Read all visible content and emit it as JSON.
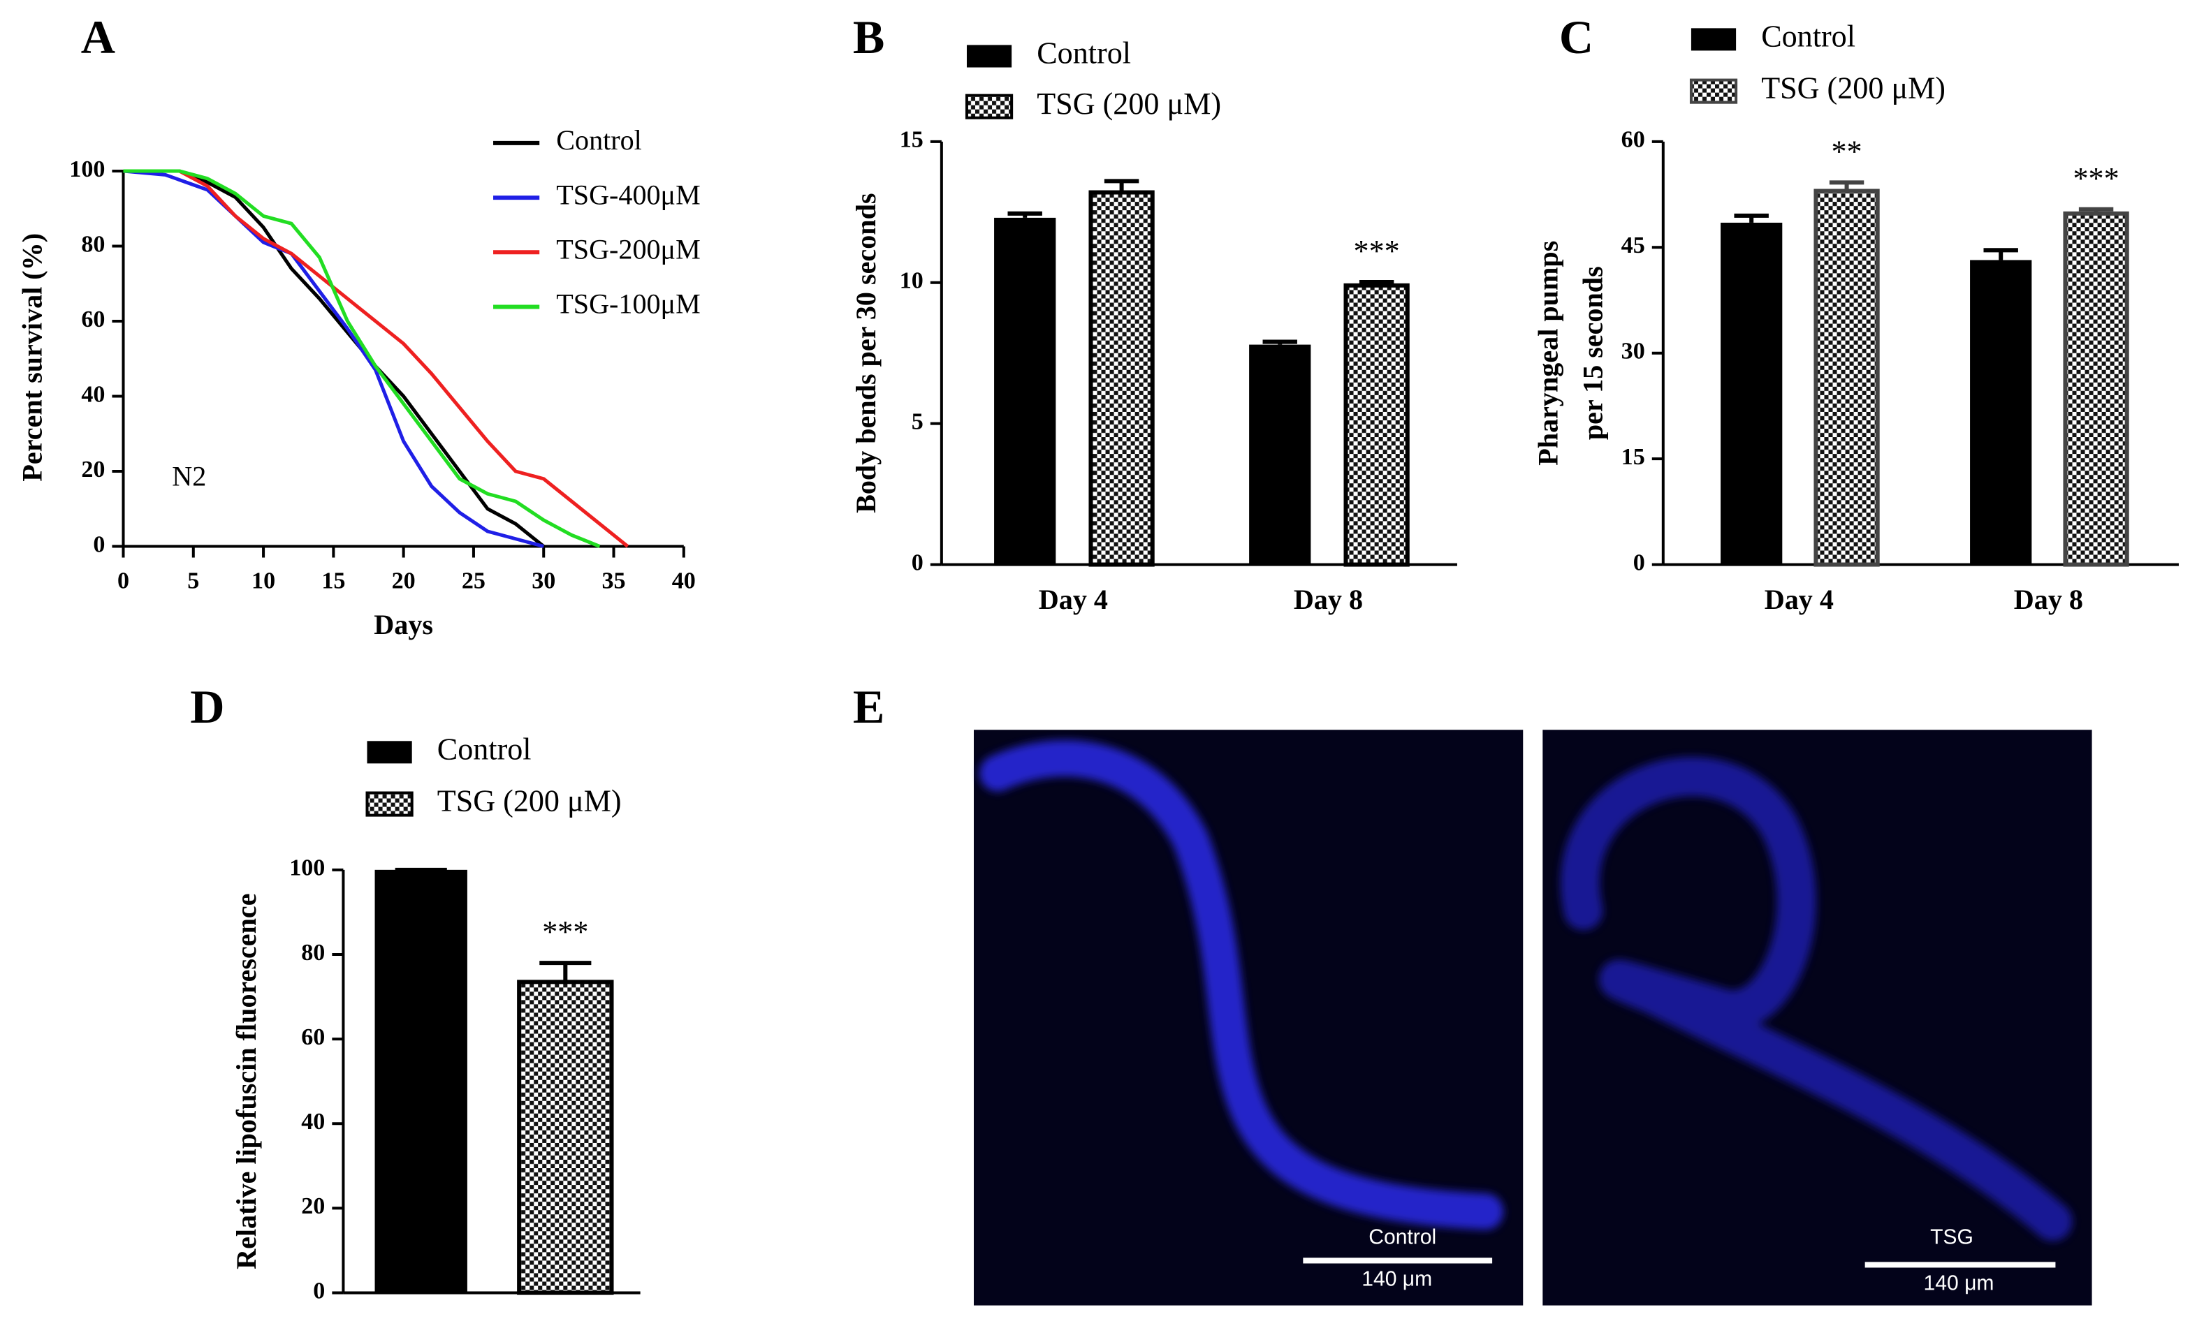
{
  "chart_data": [
    {
      "type": "line",
      "label": "A",
      "xlabel": "Days",
      "ylabel": "Percent survival (%)",
      "annotation": "N2",
      "xlim": [
        0,
        40
      ],
      "xticks": [
        0,
        5,
        10,
        15,
        20,
        25,
        30,
        35,
        40
      ],
      "ylim": [
        0,
        100
      ],
      "yticks": [
        0,
        20,
        40,
        60,
        80,
        100
      ],
      "series": [
        {
          "name": "Control",
          "color": "#000000",
          "x": [
            0,
            4,
            6,
            8,
            10,
            12,
            14,
            16,
            18,
            20,
            22,
            24,
            26,
            28,
            30
          ],
          "values": [
            100,
            100,
            97,
            93,
            85,
            74,
            66,
            57,
            48,
            40,
            30,
            20,
            10,
            6,
            0
          ]
        },
        {
          "name": "TSG-400μM",
          "color": "#1f1fe6",
          "x": [
            0,
            3,
            6,
            8,
            10,
            12,
            14,
            16,
            18,
            20,
            22,
            24,
            26,
            28,
            30
          ],
          "values": [
            100,
            99,
            95,
            88,
            81,
            78,
            68,
            58,
            47,
            28,
            16,
            9,
            4,
            2,
            0
          ]
        },
        {
          "name": "TSG-200μM",
          "color": "#ee2020",
          "x": [
            0,
            4,
            6,
            8,
            10,
            12,
            14,
            16,
            18,
            20,
            22,
            24,
            26,
            28,
            30,
            32,
            34,
            36
          ],
          "values": [
            100,
            100,
            96,
            88,
            82,
            78,
            72,
            66,
            60,
            54,
            46,
            37,
            28,
            20,
            18,
            12,
            6,
            0
          ]
        },
        {
          "name": "TSG-100μM",
          "color": "#22dd22",
          "x": [
            0,
            4,
            6,
            8,
            10,
            12,
            14,
            16,
            18,
            20,
            22,
            24,
            26,
            28,
            30,
            32,
            34
          ],
          "values": [
            100,
            100,
            98,
            94,
            88,
            86,
            77,
            60,
            48,
            38,
            28,
            18,
            14,
            12,
            7,
            3,
            0
          ]
        }
      ]
    },
    {
      "type": "bar",
      "label": "B",
      "ylabel": "Body bends per 30 seconds",
      "categories": [
        "Day 4",
        "Day 8"
      ],
      "ylim": [
        0,
        15
      ],
      "yticks": [
        0,
        5,
        10,
        15
      ],
      "series": [
        {
          "name": "Control",
          "color": "#000000",
          "values": [
            12.3,
            7.8
          ],
          "errors": [
            0.15,
            0.1
          ],
          "significance": [
            null,
            null
          ]
        },
        {
          "name": "TSG (200 μM)",
          "color": "#000000",
          "pattern": "checker",
          "values": [
            13.2,
            9.9
          ],
          "errors": [
            0.4,
            0.12
          ],
          "significance": [
            null,
            "***"
          ]
        }
      ]
    },
    {
      "type": "bar",
      "label": "C",
      "ylabel": [
        "Pharyngeal pumps",
        "per 15 seconds"
      ],
      "categories": [
        "Day 4",
        "Day 8"
      ],
      "ylim": [
        0,
        60
      ],
      "yticks": [
        0,
        15,
        30,
        45,
        60
      ],
      "series": [
        {
          "name": "Control",
          "color": "#000000",
          "values": [
            48.5,
            43.2
          ],
          "errors": [
            1.0,
            1.4
          ],
          "significance": [
            null,
            null
          ]
        },
        {
          "name": "TSG (200 μM)",
          "color": "#444444",
          "pattern": "checker",
          "values": [
            53,
            49.8
          ],
          "errors": [
            1.2,
            0.6
          ],
          "significance": [
            "**",
            "***"
          ]
        }
      ]
    },
    {
      "type": "bar",
      "label": "D",
      "ylabel": "Relative lipofuscin fluorescence",
      "categories": [
        null
      ],
      "ylim": [
        0,
        100
      ],
      "yticks": [
        0,
        20,
        40,
        60,
        80,
        100
      ],
      "series": [
        {
          "name": "Control",
          "color": "#000000",
          "values": [
            100
          ],
          "errors": [
            0
          ],
          "significance": [
            null
          ]
        },
        {
          "name": "TSG (200 μM)",
          "color": "#000000",
          "pattern": "checker",
          "values": [
            73.5
          ],
          "errors": [
            4.5
          ],
          "significance": [
            "***"
          ]
        }
      ]
    }
  ],
  "image_panel": {
    "label": "E",
    "images": [
      {
        "caption": "Control",
        "scale": "140 μm"
      },
      {
        "caption": "TSG",
        "scale": "140 μm"
      }
    ]
  }
}
